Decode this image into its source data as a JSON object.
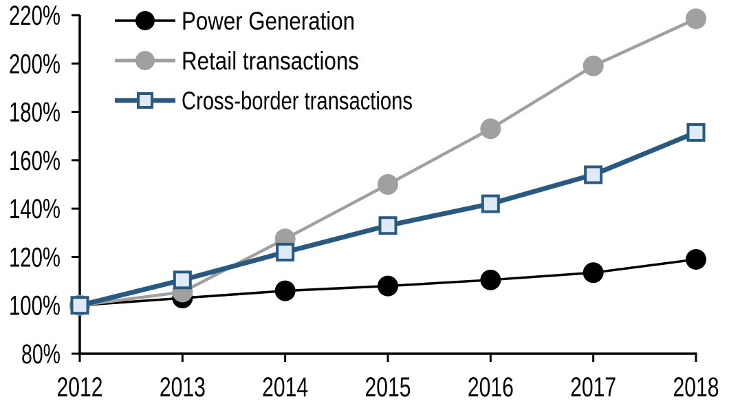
{
  "chart_data": {
    "type": "line",
    "x_labels": [
      "2012",
      "2013",
      "2014",
      "2015",
      "2016",
      "2017",
      "2018"
    ],
    "ylim": [
      80,
      220
    ],
    "ytick_step": 20,
    "ytick_labels": [
      "80%",
      "100%",
      "120%",
      "140%",
      "160%",
      "180%",
      "200%",
      "220%"
    ],
    "grid": false,
    "axis_color": "#000000",
    "background_color": "#FFFFFF",
    "legend_position": "top-left",
    "series": [
      {
        "name": "Power Generation",
        "marker": "circle",
        "color": "#000000",
        "marker_fill": "#000000",
        "values": [
          100,
          103,
          106,
          108,
          110.5,
          113.5,
          119
        ]
      },
      {
        "name": "Retail transactions",
        "marker": "circle",
        "color": "#A0A0A0",
        "marker_fill": "#A0A0A0",
        "values": [
          100,
          105.5,
          127.5,
          150,
          173,
          199,
          218.5
        ]
      },
      {
        "name": "Cross-border transactions",
        "marker": "square",
        "color": "#2A5980",
        "marker_fill": "#DEEAF7",
        "values": [
          100,
          110.5,
          122,
          133,
          142,
          154,
          171.5
        ]
      }
    ]
  }
}
